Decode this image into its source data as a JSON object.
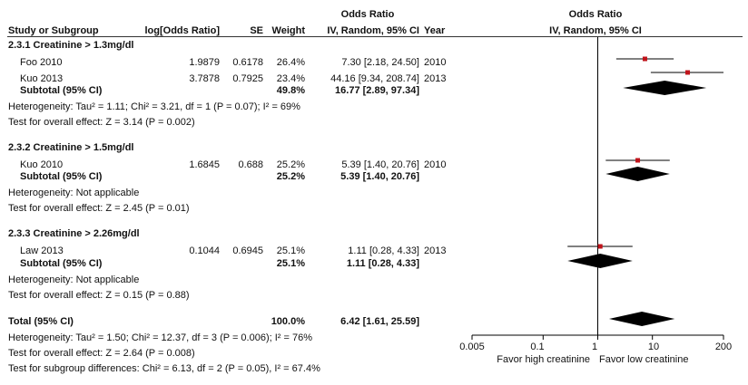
{
  "header": {
    "group1_title": "Odds Ratio",
    "group2_title": "Odds Ratio",
    "col_study": "Study or Subgroup",
    "col_logor": "log[Odds Ratio]",
    "col_se": "SE",
    "col_weight": "Weight",
    "col_ci": "IV, Random, 95% CI",
    "col_year": "Year",
    "col_plot": "IV, Random, 95% CI"
  },
  "subgroups": [
    {
      "title": "2.3.1 Creatinine > 1.3mg/dl",
      "studies": [
        {
          "name": "Foo 2010",
          "logor": "1.9879",
          "se": "0.6178",
          "weight": "26.4%",
          "ci": "7.30 [2.18, 24.50]",
          "year": "2010",
          "or": 7.3,
          "lo": 2.18,
          "hi": 24.5
        },
        {
          "name": "Kuo 2013",
          "logor": "3.7878",
          "se": "0.7925",
          "weight": "23.4%",
          "ci": "44.16 [9.34, 208.74]",
          "year": "2013",
          "or": 44.16,
          "lo": 9.34,
          "hi": 208.74
        }
      ],
      "subtotal": {
        "label": "Subtotal (95% CI)",
        "weight": "49.8%",
        "ci": "16.77 [2.89, 97.34]",
        "or": 16.77,
        "lo": 2.89,
        "hi": 97.34
      },
      "heterogeneity": "Heterogeneity: Tau² = 1.11; Chi² = 3.21, df = 1 (P = 0.07); I² = 69%",
      "overall": "Test for overall effect: Z = 3.14 (P = 0.002)"
    },
    {
      "title": "2.3.2 Creatinine > 1.5mg/dl",
      "studies": [
        {
          "name": "Kuo 2010",
          "logor": "1.6845",
          "se": "0.688",
          "weight": "25.2%",
          "ci": "5.39 [1.40, 20.76]",
          "year": "2010",
          "or": 5.39,
          "lo": 1.4,
          "hi": 20.76
        }
      ],
      "subtotal": {
        "label": "Subtotal (95% CI)",
        "weight": "25.2%",
        "ci": "5.39 [1.40, 20.76]",
        "or": 5.39,
        "lo": 1.4,
        "hi": 20.76
      },
      "heterogeneity": "Heterogeneity: Not applicable",
      "overall": "Test for overall effect: Z = 2.45 (P = 0.01)"
    },
    {
      "title": "2.3.3 Creatinine > 2.26mg/dl",
      "studies": [
        {
          "name": "Law 2013",
          "logor": "0.1044",
          "se": "0.6945",
          "weight": "25.1%",
          "ci": "1.11 [0.28, 4.33]",
          "year": "2013",
          "or": 1.11,
          "lo": 0.28,
          "hi": 4.33
        }
      ],
      "subtotal": {
        "label": "Subtotal (95% CI)",
        "weight": "25.1%",
        "ci": "1.11 [0.28, 4.33]",
        "or": 1.11,
        "lo": 0.28,
        "hi": 4.33
      },
      "heterogeneity": "Heterogeneity: Not applicable",
      "overall": "Test for overall effect: Z = 0.15 (P = 0.88)"
    }
  ],
  "total": {
    "label": "Total (95% CI)",
    "weight": "100.0%",
    "ci": "6.42 [1.61, 25.59]",
    "or": 6.42,
    "lo": 1.61,
    "hi": 25.59,
    "heterogeneity": "Heterogeneity: Tau² = 1.50; Chi² = 12.37, df = 3 (P = 0.006); I² = 76%",
    "overall": "Test for overall effect: Z = 2.64 (P = 0.008)",
    "subgroup_diff": "Test for subgroup differences: Chi² = 6.13, df = 2 (P = 0.05), I² = 67.4%"
  },
  "axis": {
    "ticks": [
      0.005,
      0.1,
      1,
      10,
      200
    ],
    "tick_labels": [
      "0.005",
      "0.1",
      "1",
      "10",
      "200"
    ],
    "left_label": "Favor high creatinine",
    "right_label": "Favor low creatinine"
  },
  "colors": {
    "marker": "#c0141b",
    "diamond": "#000000",
    "line": "#000000"
  },
  "chart_data": {
    "type": "forest",
    "x_scale": "log",
    "xlim": [
      0.005,
      200
    ],
    "categories": [
      "Foo 2010",
      "Kuo 2013",
      "Subtotal 2.3.1",
      "Kuo 2010",
      "Subtotal 2.3.2",
      "Law 2013",
      "Subtotal 2.3.3",
      "Total (95% CI)"
    ],
    "or": [
      7.3,
      44.16,
      16.77,
      5.39,
      5.39,
      1.11,
      1.11,
      6.42
    ],
    "ci_low": [
      2.18,
      9.34,
      2.89,
      1.4,
      1.4,
      0.28,
      0.28,
      1.61
    ],
    "ci_high": [
      24.5,
      208.74,
      97.34,
      20.76,
      20.76,
      4.33,
      4.33,
      25.59
    ]
  }
}
